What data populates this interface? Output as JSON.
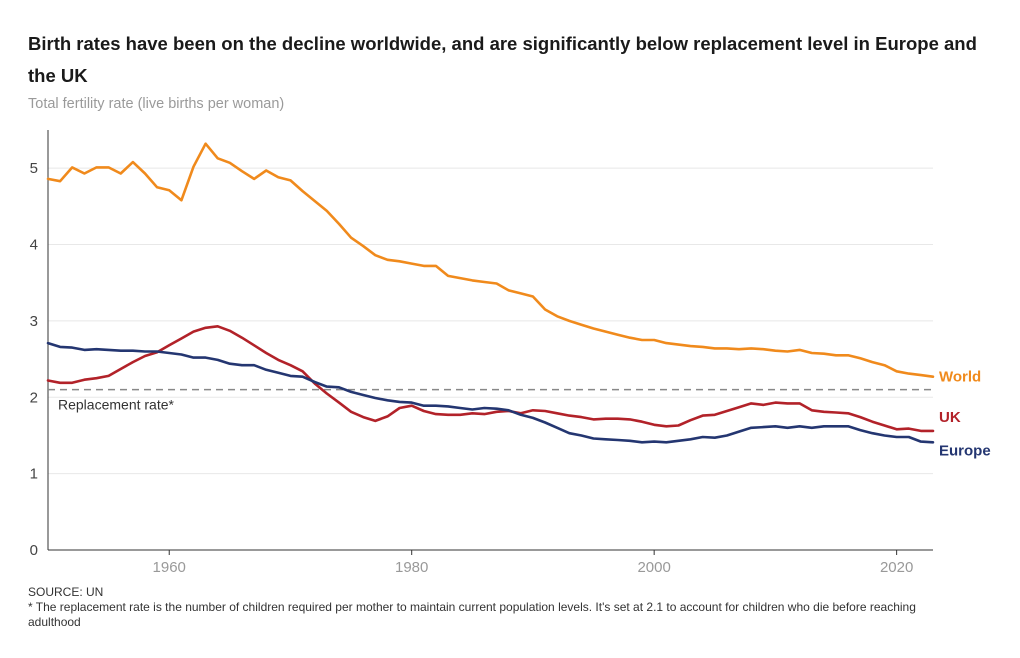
{
  "header": {
    "title": "Birth rates have been on the decline worldwide, and are significantly below replacement level in Europe and the UK",
    "subtitle": "Total fertility rate (live births per woman)"
  },
  "footer": {
    "source": "SOURCE: UN",
    "note": "* The replacement rate is the number of children required per mother to maintain current population levels. It's set at 2.1 to account for children who die before reaching adulthood"
  },
  "colors": {
    "world": "#f08a1c",
    "uk": "#b22229",
    "europe": "#243671",
    "grid": "#e8e8e8",
    "axis": "#333333",
    "replacement": "#888888"
  },
  "chart_data": {
    "type": "line",
    "title": "Birth rates have been on the decline worldwide, and are significantly below replacement level in Europe and the UK",
    "ylabel": "Total fertility rate (live births per woman)",
    "xlabel": "",
    "xlim": [
      1950,
      2023
    ],
    "ylim": [
      0,
      5.5
    ],
    "x_ticks": [
      1960,
      1980,
      2000,
      2020
    ],
    "y_ticks": [
      0,
      1,
      2,
      3,
      4,
      5
    ],
    "grid": true,
    "reference_line": {
      "value": 2.1,
      "label": "Replacement rate*"
    },
    "x": [
      1950,
      1951,
      1952,
      1953,
      1954,
      1955,
      1956,
      1957,
      1958,
      1959,
      1960,
      1961,
      1962,
      1963,
      1964,
      1965,
      1966,
      1967,
      1968,
      1969,
      1970,
      1971,
      1972,
      1973,
      1974,
      1975,
      1976,
      1977,
      1978,
      1979,
      1980,
      1981,
      1982,
      1983,
      1984,
      1985,
      1986,
      1987,
      1988,
      1989,
      1990,
      1991,
      1992,
      1993,
      1994,
      1995,
      1996,
      1997,
      1998,
      1999,
      2000,
      2001,
      2002,
      2003,
      2004,
      2005,
      2006,
      2007,
      2008,
      2009,
      2010,
      2011,
      2012,
      2013,
      2014,
      2015,
      2016,
      2017,
      2018,
      2019,
      2020,
      2021,
      2022,
      2023
    ],
    "series": [
      {
        "name": "World",
        "color": "#f08a1c",
        "values": [
          4.86,
          4.83,
          5.01,
          4.93,
          5.01,
          5.01,
          4.93,
          5.08,
          4.93,
          4.75,
          4.71,
          4.58,
          5.02,
          5.32,
          5.13,
          5.07,
          4.96,
          4.86,
          4.97,
          4.88,
          4.84,
          4.7,
          4.57,
          4.44,
          4.27,
          4.09,
          3.98,
          3.86,
          3.8,
          3.78,
          3.75,
          3.72,
          3.72,
          3.59,
          3.56,
          3.53,
          3.51,
          3.49,
          3.4,
          3.36,
          3.32,
          3.15,
          3.06,
          3.0,
          2.95,
          2.9,
          2.86,
          2.82,
          2.78,
          2.75,
          2.75,
          2.71,
          2.69,
          2.67,
          2.66,
          2.64,
          2.64,
          2.63,
          2.64,
          2.63,
          2.61,
          2.6,
          2.62,
          2.58,
          2.57,
          2.55,
          2.55,
          2.51,
          2.46,
          2.42,
          2.34,
          2.31,
          2.29,
          2.27
        ]
      },
      {
        "name": "UK",
        "color": "#b22229",
        "values": [
          2.22,
          2.19,
          2.19,
          2.23,
          2.25,
          2.28,
          2.37,
          2.46,
          2.54,
          2.59,
          2.68,
          2.77,
          2.86,
          2.91,
          2.93,
          2.87,
          2.78,
          2.68,
          2.58,
          2.49,
          2.42,
          2.34,
          2.18,
          2.05,
          1.93,
          1.81,
          1.74,
          1.69,
          1.75,
          1.86,
          1.89,
          1.82,
          1.78,
          1.77,
          1.77,
          1.79,
          1.78,
          1.81,
          1.82,
          1.79,
          1.83,
          1.82,
          1.79,
          1.76,
          1.74,
          1.71,
          1.72,
          1.72,
          1.71,
          1.68,
          1.64,
          1.62,
          1.63,
          1.7,
          1.76,
          1.77,
          1.82,
          1.87,
          1.92,
          1.9,
          1.93,
          1.92,
          1.92,
          1.83,
          1.81,
          1.8,
          1.79,
          1.74,
          1.68,
          1.63,
          1.58,
          1.59,
          1.56,
          1.56
        ]
      },
      {
        "name": "Europe",
        "color": "#243671",
        "values": [
          2.71,
          2.66,
          2.65,
          2.62,
          2.63,
          2.62,
          2.61,
          2.61,
          2.6,
          2.6,
          2.58,
          2.56,
          2.52,
          2.52,
          2.49,
          2.44,
          2.42,
          2.42,
          2.36,
          2.32,
          2.28,
          2.27,
          2.2,
          2.14,
          2.13,
          2.07,
          2.03,
          1.99,
          1.96,
          1.94,
          1.93,
          1.89,
          1.89,
          1.88,
          1.86,
          1.84,
          1.86,
          1.85,
          1.83,
          1.77,
          1.73,
          1.67,
          1.6,
          1.53,
          1.5,
          1.46,
          1.45,
          1.44,
          1.43,
          1.41,
          1.42,
          1.41,
          1.43,
          1.45,
          1.48,
          1.47,
          1.5,
          1.55,
          1.6,
          1.61,
          1.62,
          1.6,
          1.62,
          1.6,
          1.62,
          1.62,
          1.62,
          1.57,
          1.53,
          1.5,
          1.48,
          1.48,
          1.42,
          1.41
        ]
      }
    ]
  }
}
